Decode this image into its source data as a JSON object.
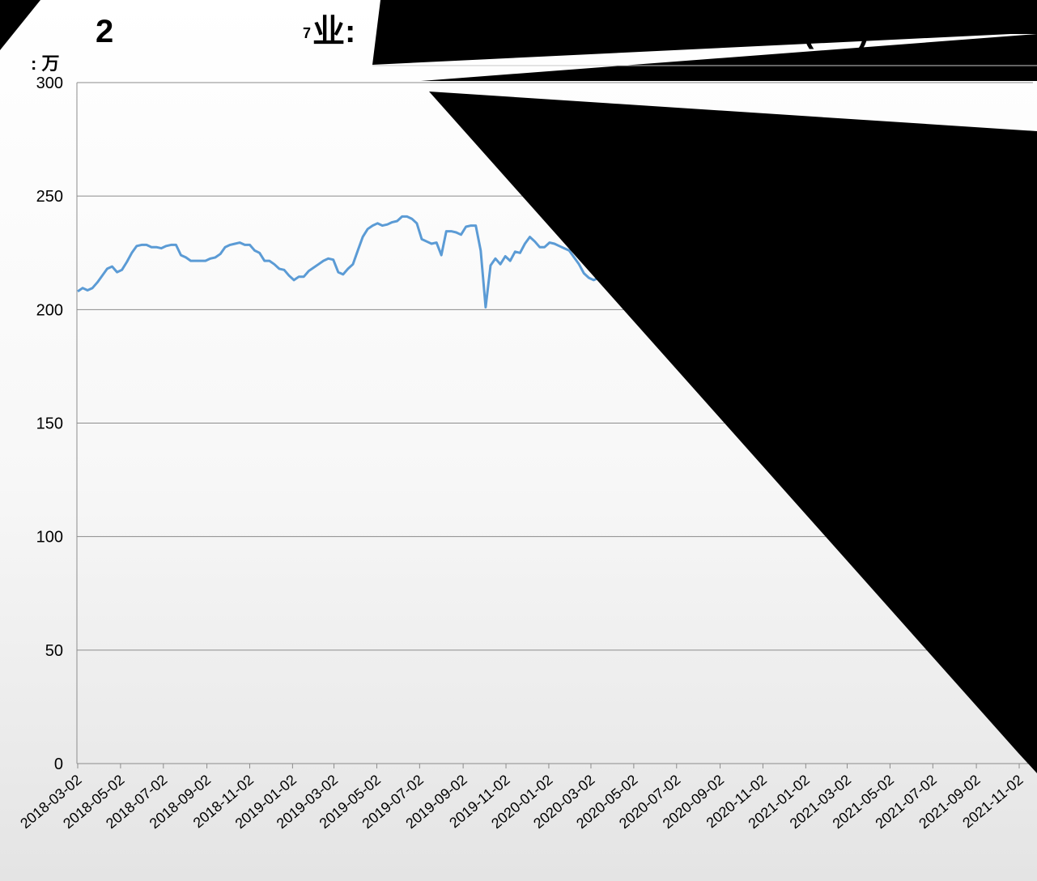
{
  "chart_data": {
    "type": "line",
    "title_parts": [
      "2",
      "7",
      "业:",
      "(",
      ")"
    ],
    "unit_label": ": 万",
    "ylim": [
      0,
      300
    ],
    "y_ticks": [
      0,
      50,
      100,
      150,
      200,
      250,
      300
    ],
    "grid": true,
    "x_tick_labels": [
      "2018-03-02",
      "2018-05-02",
      "2018-07-02",
      "2018-09-02",
      "2018-11-02",
      "2019-01-02",
      "2019-03-02",
      "2019-05-02",
      "2019-07-02",
      "2019-09-02",
      "2019-11-02",
      "2020-01-02",
      "2020-03-02",
      "2020-05-02",
      "2020-07-02",
      "2020-09-02",
      "2020-11-02",
      "2021-01-02",
      "2021-03-02",
      "2021-05-02",
      "2021-07-02",
      "2021-09-02",
      "2021-11-02"
    ],
    "series": [
      {
        "color": "#5b9bd5",
        "x": [
          "2018-03-02",
          "2018-03-09",
          "2018-03-16",
          "2018-03-23",
          "2018-03-30",
          "2018-04-06",
          "2018-04-13",
          "2018-04-20",
          "2018-04-27",
          "2018-05-04",
          "2018-05-11",
          "2018-05-18",
          "2018-05-25",
          "2018-06-01",
          "2018-06-08",
          "2018-06-15",
          "2018-06-22",
          "2018-06-29",
          "2018-07-06",
          "2018-07-13",
          "2018-07-20",
          "2018-07-27",
          "2018-08-03",
          "2018-08-10",
          "2018-08-17",
          "2018-08-24",
          "2018-08-31",
          "2018-09-07",
          "2018-09-14",
          "2018-09-21",
          "2018-09-28",
          "2018-10-05",
          "2018-10-12",
          "2018-10-19",
          "2018-10-26",
          "2018-11-02",
          "2018-11-09",
          "2018-11-16",
          "2018-11-23",
          "2018-11-30",
          "2018-12-07",
          "2018-12-14",
          "2018-12-21",
          "2018-12-28",
          "2019-01-04",
          "2019-01-11",
          "2019-01-18",
          "2019-01-25",
          "2019-02-01",
          "2019-02-08",
          "2019-02-15",
          "2019-02-22",
          "2019-03-01",
          "2019-03-08",
          "2019-03-15",
          "2019-03-22",
          "2019-03-29",
          "2019-04-05",
          "2019-04-12",
          "2019-04-19",
          "2019-04-26",
          "2019-05-03",
          "2019-05-10",
          "2019-05-17",
          "2019-05-24",
          "2019-05-31",
          "2019-06-07",
          "2019-06-14",
          "2019-06-21",
          "2019-06-28",
          "2019-07-05",
          "2019-07-12",
          "2019-07-19",
          "2019-07-26",
          "2019-08-02",
          "2019-08-09",
          "2019-08-16",
          "2019-08-23",
          "2019-08-30",
          "2019-09-06",
          "2019-09-13",
          "2019-09-20",
          "2019-09-27",
          "2019-10-04",
          "2019-10-11",
          "2019-10-18",
          "2019-10-25",
          "2019-11-01",
          "2019-11-08",
          "2019-11-15",
          "2019-11-22",
          "2019-11-29",
          "2019-12-06",
          "2019-12-13",
          "2019-12-20",
          "2019-12-27",
          "2020-01-03",
          "2020-01-10",
          "2020-01-17",
          "2020-01-24",
          "2020-01-31",
          "2020-02-07",
          "2020-02-14",
          "2020-02-21",
          "2020-02-28",
          "2020-03-06",
          "2020-03-13"
        ],
        "values": [
          208,
          209.5,
          208.5,
          209.5,
          212,
          215,
          218,
          219,
          216.5,
          217.5,
          221,
          225,
          228,
          228.5,
          228.5,
          227.5,
          227.5,
          227,
          228,
          228.5,
          228.5,
          224,
          223,
          221.5,
          221.5,
          221.5,
          221.5,
          222.5,
          223,
          224.5,
          227.5,
          228.5,
          229,
          229.5,
          228.5,
          228.5,
          226,
          225,
          221.5,
          221.5,
          220,
          218,
          217.5,
          215,
          213,
          214.5,
          214.5,
          217,
          218.5,
          220,
          221.5,
          222.5,
          222,
          216.5,
          215.5,
          218,
          220,
          226,
          232,
          235.5,
          237,
          238,
          237,
          237.5,
          238.5,
          239,
          241,
          241,
          240,
          238,
          231,
          230,
          229,
          229.5,
          224,
          234.5,
          234.5,
          234,
          233,
          236.5,
          237,
          237,
          226,
          201,
          219.5,
          222.5,
          220,
          223.5,
          221.5,
          225.5,
          225,
          229,
          232,
          230,
          227.5,
          227.5,
          229.5,
          229,
          228,
          227,
          226,
          223,
          220,
          216,
          214,
          213,
          214
        ]
      }
    ]
  }
}
